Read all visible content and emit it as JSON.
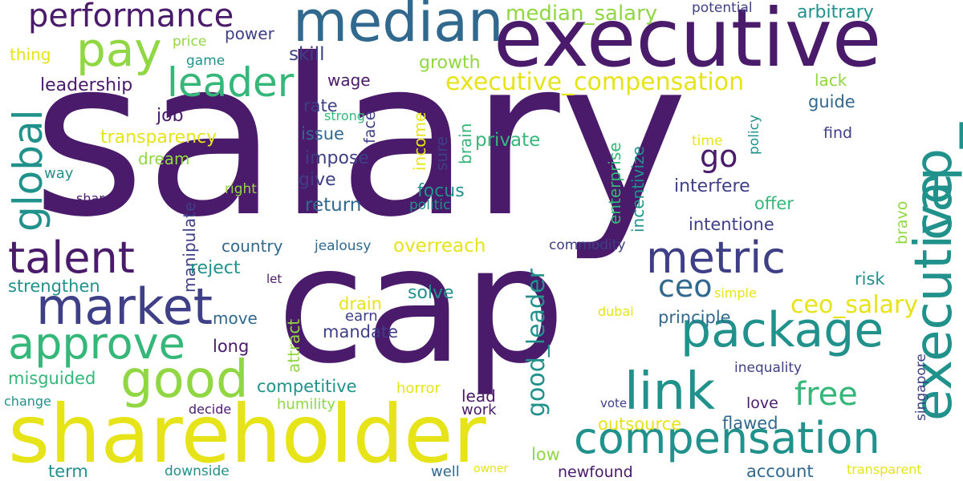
{
  "palette": {
    "background": "#ffffff",
    "dark_purple": "#4a1a6b",
    "indigo": "#3e3f86",
    "blue": "#31688e",
    "teal": "#21918c",
    "green": "#35b779",
    "lime": "#90d743",
    "yellow": "#e6e419"
  },
  "words": [
    "salary",
    "cap",
    "executive",
    "shareholder",
    "median",
    "executive",
    "compensation",
    "package",
    "link",
    "market",
    "approve",
    "good",
    "talent",
    "metric",
    "pay",
    "leader",
    "free",
    "performance",
    "global",
    "go",
    "ceo",
    "median_salary",
    "executive_compensation",
    "ceo_salary",
    "good_leader",
    "arbitrary",
    "potential",
    "power",
    "price",
    "thing",
    "game",
    "skill",
    "growth",
    "wage",
    "rate",
    "leadership",
    "lack",
    "guide",
    "job",
    "issue",
    "transparency",
    "impose",
    "private",
    "face",
    "strong",
    "income",
    "sure",
    "brain",
    "enterprise",
    "incentivize",
    "time",
    "policy",
    "find",
    "dream",
    "give",
    "way",
    "right",
    "share",
    "focus",
    "interfere",
    "return",
    "politic",
    "offer",
    "bravo",
    "intentione",
    "country",
    "jealousy",
    "overreach",
    "commodity",
    "manipulate",
    "reject",
    "attract",
    "strengthen",
    "let",
    "solve",
    "risk",
    "simple",
    "drain",
    "earn",
    "principle",
    "move",
    "mandate",
    "dubai",
    "long",
    "inequality",
    "singapore",
    "misguided",
    "competitive",
    "horror",
    "lead",
    "change",
    "decide",
    "humility",
    "work",
    "vote",
    "love",
    "outsource",
    "flawed",
    "low",
    "term",
    "downside",
    "well",
    "owner",
    "newfound",
    "account",
    "transparent",
    "cap_"
  ]
}
